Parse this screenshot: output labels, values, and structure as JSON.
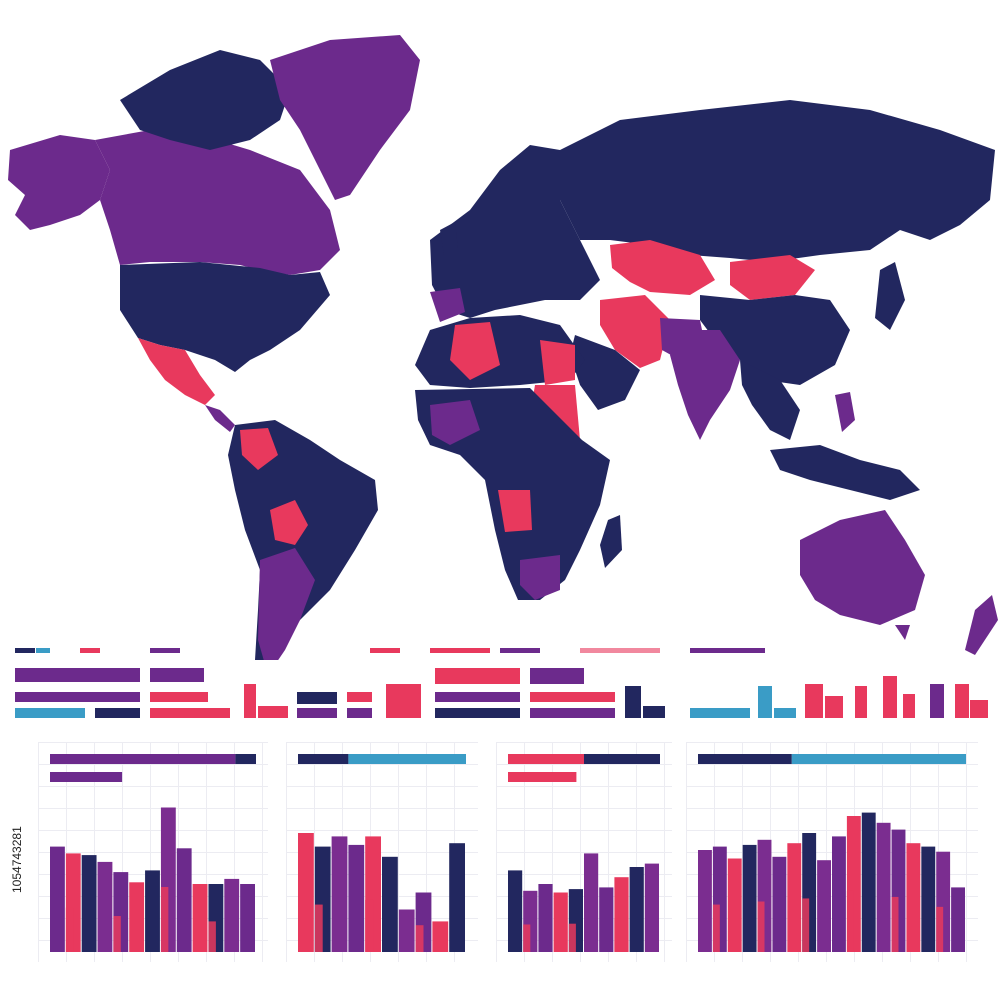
{
  "colors": {
    "navy": "#22275f",
    "purple": "#6c2a8c",
    "violet": "#7b2d90",
    "pink": "#e8395d",
    "teal": "#3a9cc6",
    "sea": "#ffffff",
    "grid": "#ececf2"
  },
  "map": {
    "type": "choropleth world map",
    "regions": [
      {
        "name": "canada",
        "color": "violet"
      },
      {
        "name": "greenland",
        "color": "violet"
      },
      {
        "name": "alaska",
        "color": "violet"
      },
      {
        "name": "arctic-islands",
        "color": "navy"
      },
      {
        "name": "usa",
        "color": "navy"
      },
      {
        "name": "mexico",
        "color": "pink"
      },
      {
        "name": "central-america",
        "color": "pink"
      },
      {
        "name": "south-america",
        "color": "navy"
      },
      {
        "name": "bolivia",
        "color": "pink"
      },
      {
        "name": "argentina",
        "color": "violet"
      },
      {
        "name": "europe",
        "color": "navy"
      },
      {
        "name": "russia",
        "color": "navy"
      },
      {
        "name": "kazakhstan",
        "color": "pink"
      },
      {
        "name": "mongolia",
        "color": "pink"
      },
      {
        "name": "china",
        "color": "navy"
      },
      {
        "name": "middle-east",
        "color": "pink"
      },
      {
        "name": "india",
        "color": "violet"
      },
      {
        "name": "southeast-asia",
        "color": "navy"
      },
      {
        "name": "indonesia",
        "color": "navy"
      },
      {
        "name": "north-africa",
        "color": "pink"
      },
      {
        "name": "africa",
        "color": "navy"
      },
      {
        "name": "madagascar",
        "color": "navy"
      },
      {
        "name": "australia",
        "color": "violet"
      },
      {
        "name": "new-zealand",
        "color": "violet"
      },
      {
        "name": "japan",
        "color": "navy"
      }
    ]
  },
  "side_watermark": "1054743281",
  "chart_data": [
    {
      "type": "bar",
      "series": [
        {
          "values": [
            62,
            58,
            57,
            53,
            47,
            41,
            48,
            85,
            61,
            40,
            40,
            43,
            40
          ]
        }
      ],
      "ylim": [
        0,
        100
      ]
    },
    {
      "type": "bar",
      "series": [
        {
          "values": [
            70,
            62,
            68,
            63,
            68,
            56,
            25,
            35,
            18,
            64
          ]
        }
      ],
      "ylim": [
        0,
        100
      ]
    },
    {
      "type": "bar",
      "series": [
        {
          "values": [
            48,
            36,
            40,
            35,
            37,
            58,
            38,
            44,
            50,
            52
          ]
        }
      ],
      "ylim": [
        0,
        100
      ]
    },
    {
      "type": "bar",
      "series": [
        {
          "values": [
            60,
            62,
            55,
            63,
            66,
            56,
            64,
            70,
            54,
            68,
            80,
            82,
            76,
            72,
            64,
            62,
            59,
            38
          ]
        }
      ],
      "ylim": [
        0,
        100
      ]
    }
  ],
  "strip_rows": [
    {
      "color": "purple",
      "values": [
        0.42,
        0.26
      ]
    },
    {
      "color": "purple",
      "values": [
        0.44,
        0.42
      ]
    },
    {
      "color": "teal",
      "values": [
        0.42,
        0.32
      ]
    }
  ]
}
